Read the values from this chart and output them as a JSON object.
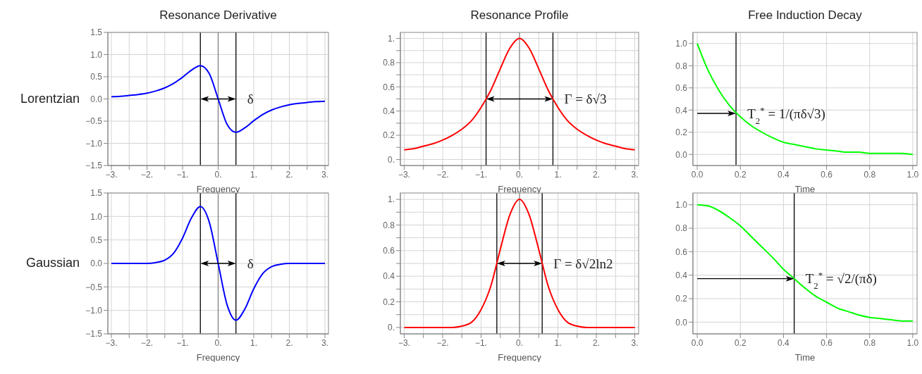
{
  "chart_data": [
    {
      "type": "line",
      "title": "Resonance Derivative",
      "xlabel": "Frequency",
      "ylabel": "Lorentzian",
      "x": [
        -3,
        -2.75,
        -2.5,
        -2.25,
        -2,
        -1.75,
        -1.5,
        -1.25,
        -1,
        -0.75,
        -0.5,
        -0.25,
        0,
        0.25,
        0.5,
        0.75,
        1,
        1.25,
        1.5,
        1.75,
        2,
        2.25,
        2.5,
        2.75,
        3
      ],
      "series": [
        {
          "color": "#0000ff",
          "values": [
            0.05,
            0.06,
            0.08,
            0.1,
            0.13,
            0.18,
            0.25,
            0.35,
            0.49,
            0.65,
            0.75,
            0.57,
            0,
            -0.57,
            -0.75,
            -0.65,
            -0.49,
            -0.35,
            -0.25,
            -0.18,
            -0.13,
            -0.1,
            -0.08,
            -0.06,
            -0.05
          ]
        }
      ],
      "xlim": [
        -3.1,
        3.1
      ],
      "ylim": [
        -1.5,
        1.5
      ],
      "xticks": [
        {
          "value": -3,
          "label": "−3."
        },
        {
          "value": -2.5,
          "label": null
        },
        {
          "value": -2,
          "label": "−2."
        },
        {
          "value": -1.5,
          "label": null
        },
        {
          "value": -1,
          "label": "−1."
        },
        {
          "value": 0,
          "label": "0."
        },
        {
          "value": 1,
          "label": "1."
        },
        {
          "value": 1.5,
          "label": null
        },
        {
          "value": 2,
          "label": "2."
        },
        {
          "value": 2.5,
          "label": null
        },
        {
          "value": 3,
          "label": "3."
        }
      ],
      "yticks": [
        {
          "value": -1.5,
          "label": "−1.5"
        },
        {
          "value": -1,
          "label": "−1.0"
        },
        {
          "value": -0.5,
          "label": "−0.5"
        },
        {
          "value": 0,
          "label": "0.0"
        },
        {
          "value": 0.5,
          "label": "0.5"
        },
        {
          "value": 1,
          "label": "1.0"
        },
        {
          "value": 1.5,
          "label": "1.5"
        }
      ],
      "grid": true,
      "ref_lines": [
        {
          "axis": "x",
          "value": 0,
          "color": "#808080"
        },
        {
          "axis": "x",
          "value": -0.5
        },
        {
          "axis": "x",
          "value": 0.5
        }
      ],
      "annotations": [
        "δ"
      ]
    },
    {
      "type": "line",
      "title": "Resonance Profile",
      "xlabel": "Frequency",
      "x": [
        -3,
        -2.75,
        -2.5,
        -2.25,
        -2,
        -1.75,
        -1.5,
        -1.25,
        -1,
        -0.75,
        -0.5,
        -0.25,
        0,
        0.25,
        0.5,
        0.75,
        1,
        1.25,
        1.5,
        1.75,
        2,
        2.25,
        2.5,
        2.75,
        3
      ],
      "series": [
        {
          "color": "#ff0000",
          "values": [
            0.08,
            0.09,
            0.11,
            0.13,
            0.16,
            0.2,
            0.25,
            0.32,
            0.43,
            0.57,
            0.75,
            0.92,
            1,
            0.92,
            0.75,
            0.57,
            0.43,
            0.32,
            0.25,
            0.2,
            0.16,
            0.13,
            0.11,
            0.09,
            0.08
          ]
        }
      ],
      "xlim": [
        -3.1,
        3.1
      ],
      "ylim": [
        -0.05,
        1.05
      ],
      "xticks": [
        {
          "value": -3,
          "label": "−3."
        },
        {
          "value": -2.5,
          "label": null
        },
        {
          "value": -2,
          "label": "−2."
        },
        {
          "value": -1.5,
          "label": null
        },
        {
          "value": -1,
          "label": "−1."
        },
        {
          "value": -0.5,
          "label": null
        },
        {
          "value": 0,
          "label": "0."
        },
        {
          "value": 0.5,
          "label": null
        },
        {
          "value": 1,
          "label": "1."
        },
        {
          "value": 1.5,
          "label": null
        },
        {
          "value": 2,
          "label": "2."
        },
        {
          "value": 2.5,
          "label": null
        },
        {
          "value": 3,
          "label": "3."
        }
      ],
      "yticks": [
        {
          "value": 0,
          "label": "0."
        },
        {
          "value": 0.1,
          "label": null
        },
        0.2,
        {
          "value": 0.3,
          "label": null
        },
        0.4,
        {
          "value": 0.5,
          "label": null
        },
        0.6,
        {
          "value": 0.7,
          "label": null
        },
        0.8,
        {
          "value": 0.9,
          "label": null
        },
        {
          "value": 1,
          "label": "1."
        }
      ],
      "grid": true,
      "ref_lines": [
        {
          "axis": "x",
          "value": 0,
          "color": "#808080"
        },
        {
          "axis": "x",
          "value": -0.87
        },
        {
          "axis": "x",
          "value": 0.87
        }
      ],
      "annotations": [
        {
          "text": "Γ = δ√3",
          "x": 0.87,
          "y": 0.5
        }
      ]
    },
    {
      "type": "line",
      "title": "Free Induction Decay",
      "xlabel": "Time",
      "x": [
        0,
        0.05,
        0.1,
        0.15,
        0.2,
        0.25,
        0.3,
        0.35,
        0.4,
        0.45,
        0.5,
        0.55,
        0.6,
        0.65,
        0.7,
        0.75,
        0.8,
        0.85,
        0.9,
        0.95,
        1
      ],
      "series": [
        {
          "color": "#00ff00",
          "values": [
            1,
            0.76,
            0.58,
            0.44,
            0.34,
            0.26,
            0.2,
            0.15,
            0.11,
            0.09,
            0.07,
            0.05,
            0.04,
            0.03,
            0.02,
            0.02,
            0.01,
            0.01,
            0.01,
            0.01,
            0
          ]
        }
      ],
      "xlim": [
        -0.02,
        1.02
      ],
      "ylim": [
        -0.1,
        1.1
      ],
      "xticks": [
        {
          "value": 0,
          "label": "0.0"
        },
        0.2,
        0.4,
        0.6,
        0.8,
        {
          "value": 1,
          "label": "1.0"
        }
      ],
      "yticks": [
        {
          "value": 0,
          "label": "0.0"
        },
        0.2,
        0.4,
        0.6,
        0.8,
        {
          "value": 1,
          "label": "1.0"
        }
      ],
      "grid": true,
      "ref_lines": [
        {
          "axis": "x",
          "value": 0.18
        }
      ],
      "annotations": [
        {
          "text": "T$_{2}$$^{*}$ = 1/(πδ√3)",
          "x": 0.18,
          "y": 0.37
        }
      ]
    },
    {
      "type": "line",
      "xlabel": "Frequency",
      "ylabel": "Gaussian",
      "x": [
        -3,
        -2.75,
        -2.5,
        -2.25,
        -2,
        -1.75,
        -1.5,
        -1.25,
        -1,
        -0.75,
        -0.5,
        -0.25,
        0,
        0.25,
        0.5,
        0.75,
        1,
        1.25,
        1.5,
        1.75,
        2,
        2.25,
        2.5,
        2.75,
        3
      ],
      "series": [
        {
          "color": "#0000ff",
          "values": [
            0,
            0,
            0,
            0,
            0,
            0.02,
            0.07,
            0.22,
            0.54,
            0.97,
            1.21,
            0.88,
            0,
            -0.88,
            -1.21,
            -0.97,
            -0.54,
            -0.22,
            -0.07,
            -0.02,
            0,
            0,
            0,
            0,
            0
          ]
        }
      ],
      "xlim": [
        -3.1,
        3.1
      ],
      "ylim": [
        -1.5,
        1.5
      ],
      "xticks": [
        {
          "value": -3,
          "label": "−3."
        },
        {
          "value": -2.5,
          "label": null
        },
        {
          "value": -2,
          "label": "−2."
        },
        {
          "value": -1.5,
          "label": null
        },
        {
          "value": -1,
          "label": "−1."
        },
        {
          "value": 0,
          "label": "0."
        },
        {
          "value": 1,
          "label": "1."
        },
        {
          "value": 1.5,
          "label": null
        },
        {
          "value": 2,
          "label": "2."
        },
        {
          "value": 2.5,
          "label": null
        },
        {
          "value": 3,
          "label": "3."
        }
      ],
      "yticks": [
        {
          "value": -1.5,
          "label": "−1.5"
        },
        {
          "value": -1,
          "label": "−1.0"
        },
        {
          "value": -0.5,
          "label": "−0.5"
        },
        {
          "value": 0,
          "label": "0.0"
        },
        {
          "value": 0.5,
          "label": "0.5"
        },
        {
          "value": 1,
          "label": "1.0"
        },
        {
          "value": 1.5,
          "label": "1.5"
        }
      ],
      "grid": true,
      "ref_lines": [
        {
          "axis": "x",
          "value": 0,
          "color": "#808080"
        },
        {
          "axis": "x",
          "value": -0.5
        },
        {
          "axis": "x",
          "value": 0.5
        }
      ],
      "annotations": [
        "δ"
      ]
    },
    {
      "type": "line",
      "xlabel": "Frequency",
      "x": [
        -3,
        -2.75,
        -2.5,
        -2.25,
        -2,
        -1.75,
        -1.5,
        -1.25,
        -1,
        -0.75,
        -0.5,
        -0.25,
        0,
        0.25,
        0.5,
        0.75,
        1,
        1.25,
        1.5,
        1.75,
        2,
        2.25,
        2.5,
        2.75,
        3
      ],
      "series": [
        {
          "color": "#ff0000",
          "values": [
            0,
            0,
            0,
            0,
            0,
            0,
            0.01,
            0.04,
            0.14,
            0.32,
            0.61,
            0.88,
            1,
            0.88,
            0.61,
            0.32,
            0.14,
            0.04,
            0.01,
            0,
            0,
            0,
            0,
            0,
            0
          ]
        }
      ],
      "xlim": [
        -3.1,
        3.1
      ],
      "ylim": [
        -0.05,
        1.05
      ],
      "xticks": [
        {
          "value": -3,
          "label": "−3."
        },
        {
          "value": -2.5,
          "label": null
        },
        {
          "value": -2,
          "label": "−2."
        },
        {
          "value": -1.5,
          "label": null
        },
        {
          "value": -1,
          "label": "−1."
        },
        {
          "value": -0.5,
          "label": null
        },
        {
          "value": 0,
          "label": "0."
        },
        {
          "value": 0.5,
          "label": null
        },
        {
          "value": 1,
          "label": "1."
        },
        {
          "value": 1.5,
          "label": null
        },
        {
          "value": 2,
          "label": "2."
        },
        {
          "value": 2.5,
          "label": null
        },
        {
          "value": 3,
          "label": "3."
        }
      ],
      "yticks": [
        {
          "value": 0,
          "label": "0."
        },
        {
          "value": 0.1,
          "label": null
        },
        0.2,
        {
          "value": 0.3,
          "label": null
        },
        0.4,
        {
          "value": 0.5,
          "label": null
        },
        0.6,
        {
          "value": 0.7,
          "label": null
        },
        0.8,
        {
          "value": 0.9,
          "label": null
        },
        {
          "value": 1,
          "label": "1."
        }
      ],
      "grid": true,
      "ref_lines": [
        {
          "axis": "x",
          "value": 0,
          "color": "#808080"
        },
        {
          "axis": "x",
          "value": -0.59
        },
        {
          "axis": "x",
          "value": 0.59
        }
      ],
      "annotations": [
        {
          "text": "Γ = δ√2ln2",
          "x": 0.59,
          "y": 0.5
        }
      ]
    },
    {
      "type": "line",
      "xlabel": "Time",
      "x": [
        0,
        0.05,
        0.1,
        0.15,
        0.2,
        0.25,
        0.3,
        0.35,
        0.4,
        0.45,
        0.5,
        0.55,
        0.6,
        0.65,
        0.7,
        0.75,
        0.8,
        0.85,
        0.9,
        0.95,
        1
      ],
      "series": [
        {
          "color": "#00ff00",
          "values": [
            1,
            0.99,
            0.95,
            0.89,
            0.82,
            0.73,
            0.64,
            0.55,
            0.45,
            0.37,
            0.29,
            0.22,
            0.17,
            0.12,
            0.09,
            0.06,
            0.04,
            0.03,
            0.02,
            0.01,
            0.01
          ]
        }
      ],
      "xlim": [
        -0.02,
        1.02
      ],
      "ylim": [
        -0.1,
        1.1
      ],
      "xticks": [
        {
          "value": 0,
          "label": "0.0"
        },
        0.2,
        0.4,
        0.6,
        0.8,
        {
          "value": 1,
          "label": "1.0"
        }
      ],
      "yticks": [
        {
          "value": 0,
          "label": "0.0"
        },
        0.2,
        0.4,
        0.6,
        0.8,
        {
          "value": 1,
          "label": "1.0"
        }
      ],
      "grid": true,
      "ref_lines": [
        {
          "axis": "x",
          "value": 0.45
        }
      ],
      "annotations": [
        {
          "text": "T$_{2}$$^{*}$ = √2/(πδ)",
          "x": 0.45,
          "y": 0.37
        }
      ]
    }
  ]
}
